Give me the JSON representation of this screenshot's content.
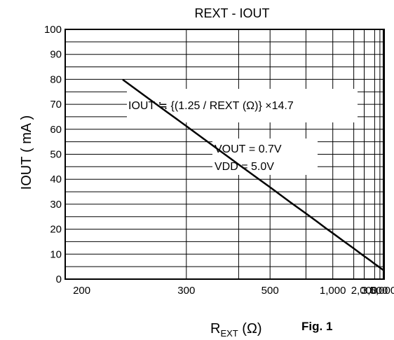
{
  "chart_data": {
    "type": "line",
    "title": "REXT - IOUT",
    "title_parts": {
      "a": "R",
      "b": "EXT",
      "c": " - I",
      "d": "OUT"
    },
    "ylabel": "IOUT ( mA )",
    "ylabel_parts": {
      "a": "I",
      "b": "OUT",
      "c": " ( mA )"
    },
    "xlabel": "REXT (Ω)",
    "xlabel_parts": {
      "a": "R",
      "b": "EXT",
      "c": " (Ω)"
    },
    "figure_label": "Fig. 1",
    "x_scale": "reciprocal",
    "xlim": [
      190,
      5500
    ],
    "ylim": [
      0,
      100
    ],
    "y_ticks": [
      0,
      10,
      20,
      30,
      40,
      50,
      60,
      70,
      80,
      90,
      100
    ],
    "x_ticks": [
      {
        "value": 200,
        "label": "200"
      },
      {
        "value": 300,
        "label": "300"
      },
      {
        "value": 500,
        "label": "500"
      },
      {
        "value": 1000,
        "label": "1,000"
      },
      {
        "value": 2000,
        "label": "2,000"
      },
      {
        "value": 3000,
        "label": "3,000"
      },
      {
        "value": 5000,
        "label": "5,000"
      }
    ],
    "grid": true,
    "series": [
      {
        "x": [
          230,
          250,
          275,
          300,
          350,
          400,
          450,
          500,
          600,
          700,
          800,
          900,
          1000,
          1200,
          1500,
          2000,
          2500,
          3000,
          3500,
          4000,
          4500,
          5000
        ],
        "y": [
          79.9,
          73.5,
          66.8,
          61.3,
          52.5,
          45.9,
          40.8,
          36.8,
          30.6,
          26.3,
          23.0,
          20.4,
          18.4,
          15.3,
          12.3,
          9.2,
          7.4,
          6.1,
          5.3,
          4.6,
          4.1,
          3.7
        ]
      }
    ],
    "annotations": {
      "formula": {
        "a": "I",
        "b": "OUT",
        "c": " ≒ {(1.25 / R",
        "d": "EXT",
        "e": " (Ω)} ×14.7"
      },
      "vout": {
        "a": "V",
        "b": "OUT",
        "c": " = 0.7V"
      },
      "vdd": {
        "a": "V",
        "b": "DD",
        "c": " = 5.0V"
      }
    }
  }
}
